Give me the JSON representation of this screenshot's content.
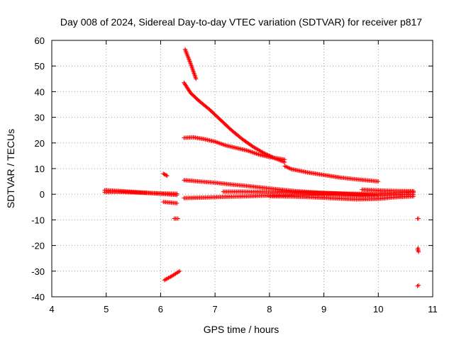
{
  "chart_data": {
    "type": "scatter",
    "title": "Day 008 of 2024, Sidereal Day-to-day VTEC variation (SDTVAR) for receiver p817",
    "xlabel": "GPS time / hours",
    "ylabel": "SDTVAR / TECUs",
    "xlim": [
      4,
      11
    ],
    "ylim": [
      -40,
      60
    ],
    "xticks": [
      "4",
      "5",
      "6",
      "7",
      "8",
      "9",
      "10",
      "11"
    ],
    "yticks": [
      "60",
      "50",
      "40",
      "30",
      "20",
      "10",
      "0",
      "-10",
      "-20",
      "-30",
      "-40"
    ],
    "grid": true,
    "marker": "+",
    "color": "#ff0000",
    "segments": [
      {
        "x": [
          4.97,
          5.2,
          5.5,
          5.8,
          6.05,
          6.3
        ],
        "y": [
          0.8,
          0.9,
          0.7,
          0.5,
          0.3,
          0.2
        ]
      },
      {
        "x": [
          4.97,
          5.3,
          5.7,
          6.05,
          6.3
        ],
        "y": [
          1.6,
          1.2,
          0.6,
          0.1,
          -0.3
        ]
      },
      {
        "x": [
          6.05,
          6.12
        ],
        "y": [
          8.0,
          7.2
        ]
      },
      {
        "x": [
          6.05,
          6.3
        ],
        "y": [
          -3.0,
          -3.5
        ]
      },
      {
        "x": [
          6.25,
          6.32
        ],
        "y": [
          -9.5,
          -9.5
        ]
      },
      {
        "x": [
          6.07,
          6.2,
          6.35
        ],
        "y": [
          -33.5,
          -32.0,
          -30.0
        ]
      },
      {
        "x": [
          6.45,
          6.55,
          6.65
        ],
        "y": [
          56.5,
          51.0,
          45.0
        ]
      },
      {
        "x": [
          6.43,
          6.55,
          6.7,
          6.9,
          7.1,
          7.3,
          7.5,
          7.7,
          7.9,
          8.1,
          8.28
        ],
        "y": [
          43.5,
          39.5,
          36.5,
          33.0,
          29.0,
          25.0,
          21.5,
          18.5,
          16.0,
          14.0,
          12.5
        ]
      },
      {
        "x": [
          8.28,
          8.4,
          8.7,
          9.0,
          9.3,
          9.6,
          9.85,
          10.0
        ],
        "y": [
          11.0,
          9.8,
          8.5,
          7.5,
          6.5,
          5.8,
          5.3,
          5.0
        ]
      },
      {
        "x": [
          6.43,
          6.6,
          6.8,
          7.0,
          7.2,
          7.4,
          7.6,
          7.8,
          8.0,
          8.28
        ],
        "y": [
          22.0,
          22.2,
          21.5,
          20.5,
          19.0,
          18.0,
          17.0,
          15.5,
          14.5,
          13.5
        ]
      },
      {
        "x": [
          6.43,
          6.7,
          7.0,
          7.3,
          7.6,
          7.9,
          8.2,
          8.5,
          8.9,
          9.3,
          9.7,
          10.0
        ],
        "y": [
          5.5,
          5.0,
          4.5,
          3.8,
          3.2,
          2.5,
          1.8,
          1.2,
          0.6,
          0.2,
          -0.2,
          -0.5
        ]
      },
      {
        "x": [
          6.43,
          6.8,
          7.2,
          7.6,
          8.0,
          8.4,
          8.8,
          9.2,
          9.6,
          10.0,
          10.3,
          10.65
        ],
        "y": [
          -1.5,
          -1.3,
          -1.0,
          -0.8,
          -0.5,
          -0.4,
          -0.3,
          -0.3,
          -0.6,
          -0.5,
          -0.2,
          0.0
        ]
      },
      {
        "x": [
          7.15,
          7.5,
          7.9,
          8.3,
          8.7,
          9.1,
          9.5,
          9.9,
          10.3,
          10.65
        ],
        "y": [
          1.0,
          1.0,
          0.9,
          0.8,
          0.6,
          0.4,
          0.2,
          0.1,
          0.5,
          0.8
        ]
      },
      {
        "x": [
          8.0,
          8.4,
          8.8,
          9.2,
          9.6,
          10.0,
          10.3,
          10.65
        ],
        "y": [
          -0.8,
          -0.9,
          -1.2,
          -1.6,
          -2.0,
          -1.8,
          -1.2,
          -0.8
        ]
      },
      {
        "x": [
          9.7,
          10.0,
          10.3,
          10.65
        ],
        "y": [
          1.8,
          1.5,
          1.3,
          1.2
        ]
      },
      {
        "x": [
          10.72,
          10.74
        ],
        "y": [
          -9.5,
          -9.5
        ]
      },
      {
        "x": [
          10.72,
          10.74,
          10.73
        ],
        "y": [
          -21.5,
          -22.5,
          -21.0
        ]
      },
      {
        "x": [
          10.72,
          10.74
        ],
        "y": [
          -35.8,
          -35.5
        ]
      }
    ]
  }
}
